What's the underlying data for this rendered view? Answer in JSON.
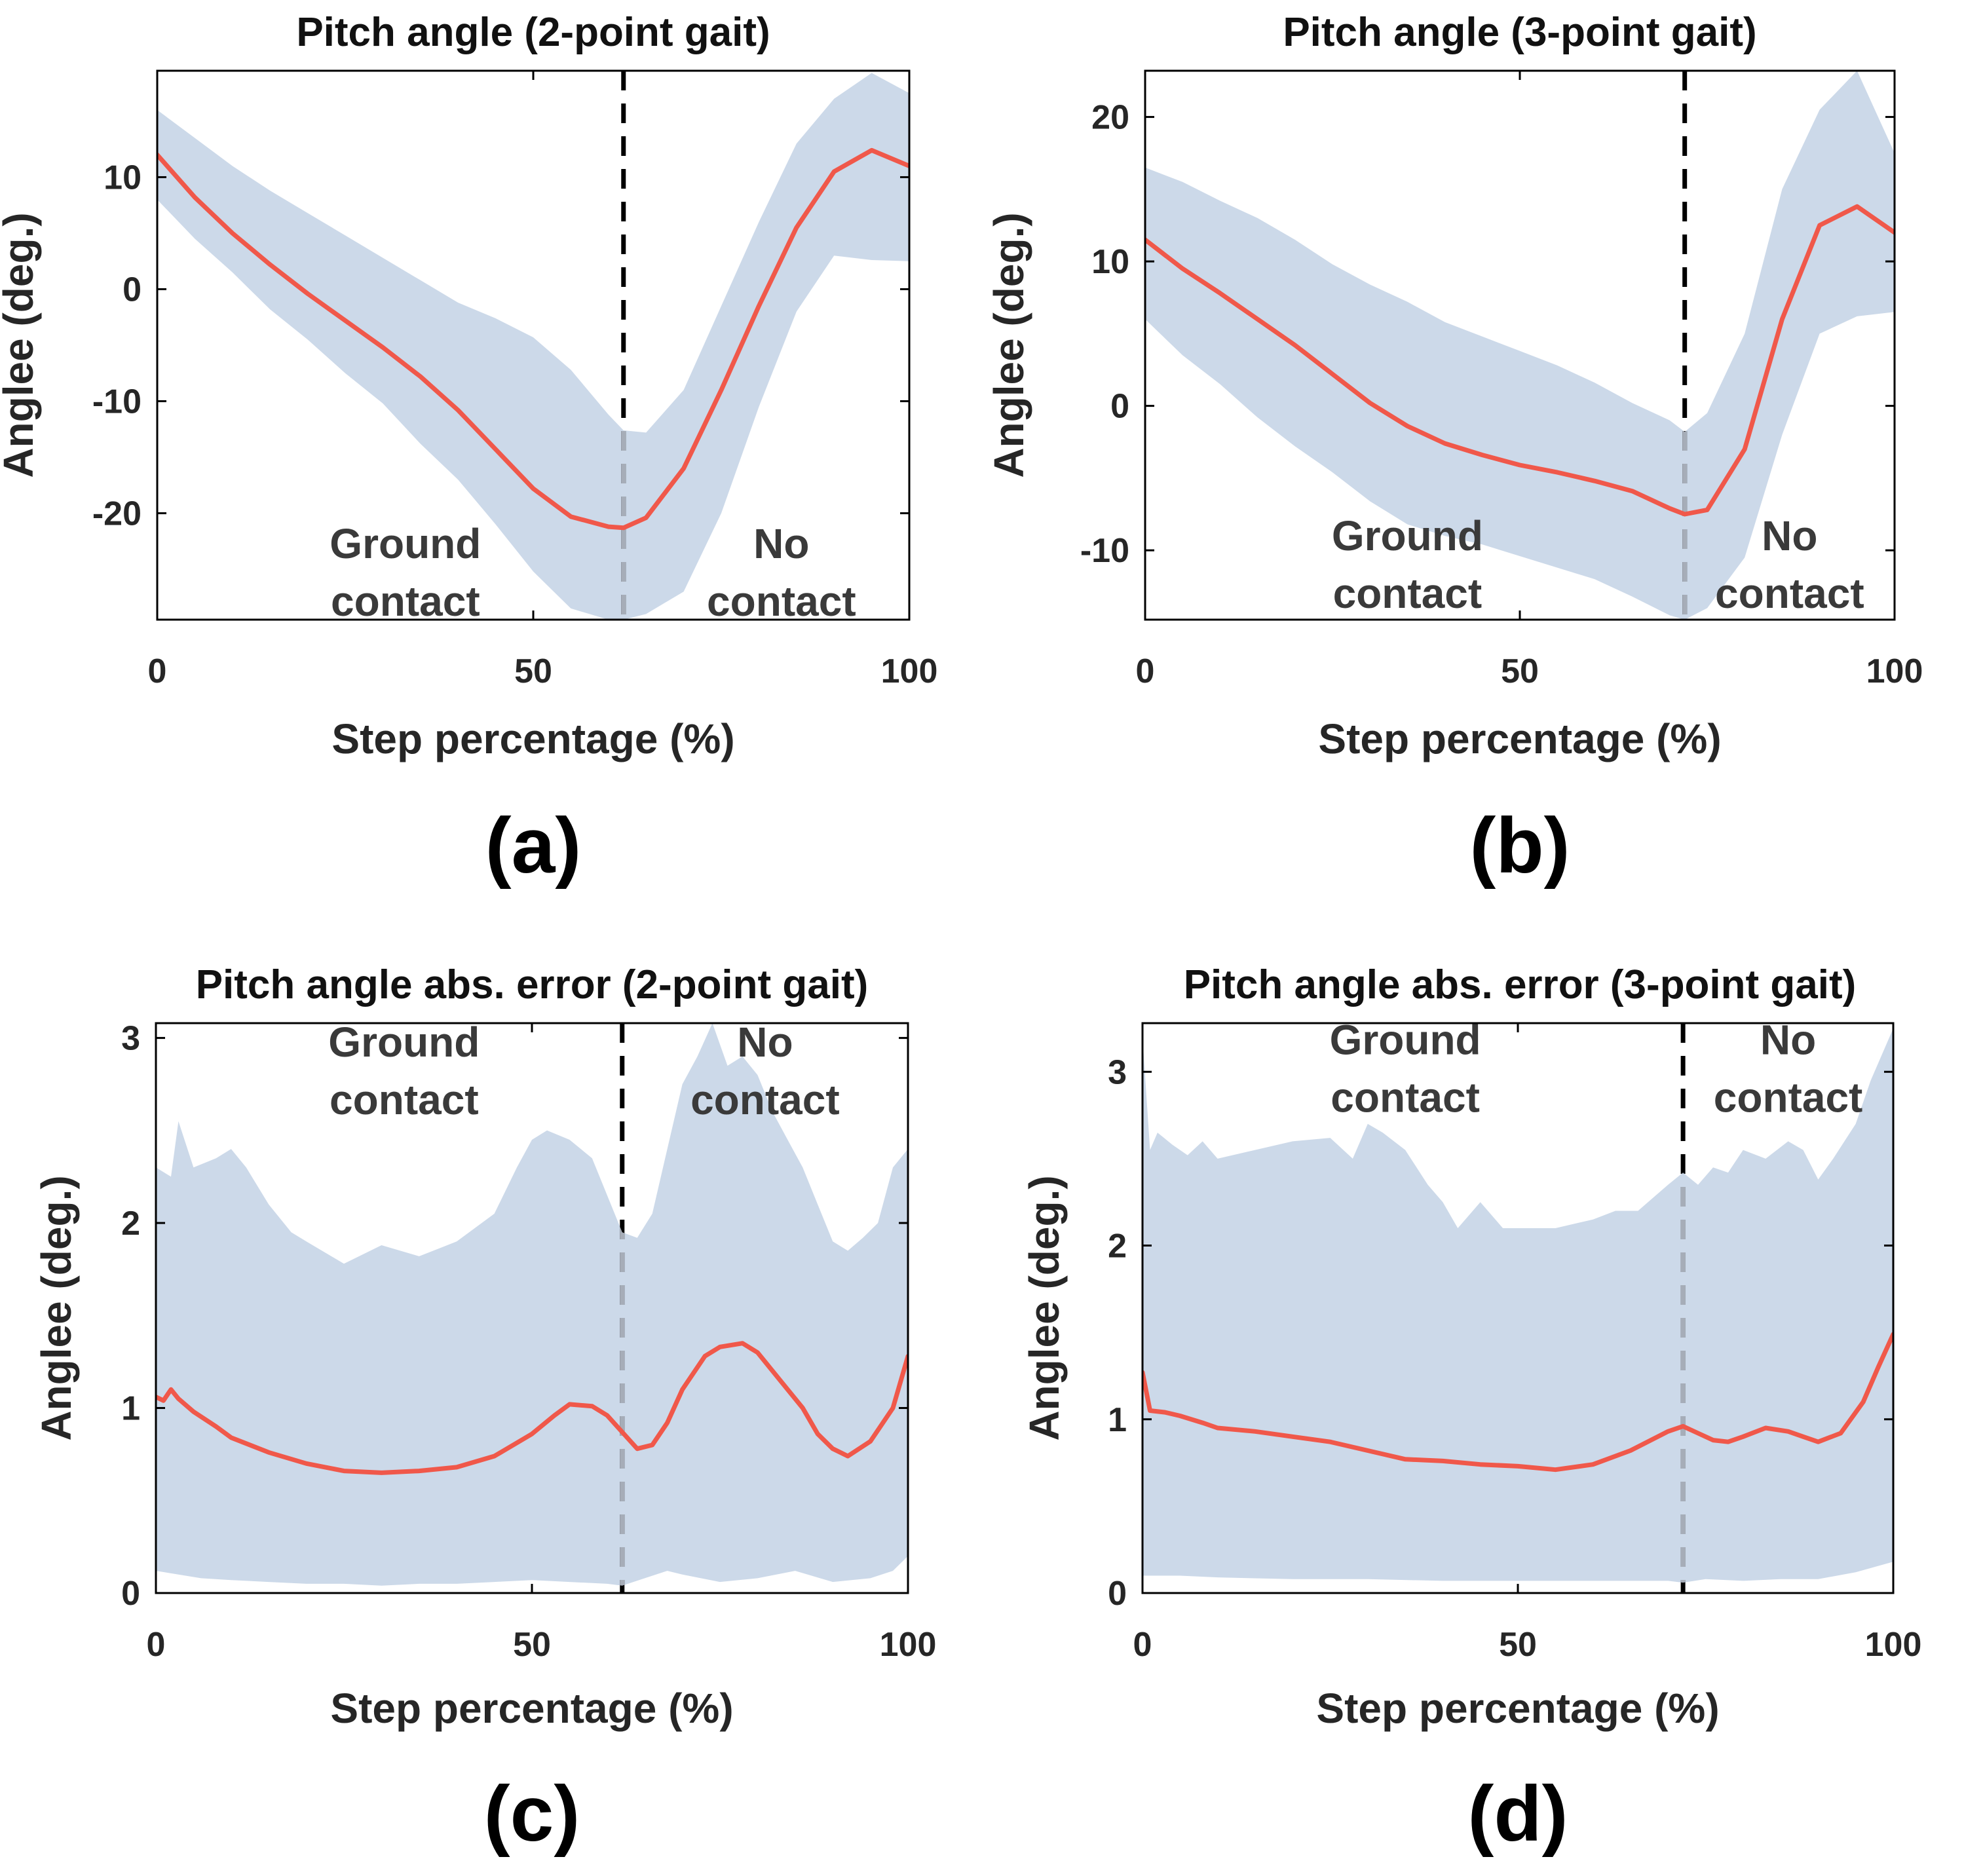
{
  "chart_data": [
    {
      "type": "area",
      "panel_label": "(a)",
      "title": "Pitch angle (2-point gait)",
      "xlabel": "Step percentage (%)",
      "ylabel": "Anglee (deg.)",
      "xlim": [
        0,
        100
      ],
      "ylim": [
        -29.5,
        19.5
      ],
      "xticks": [
        0,
        50,
        100
      ],
      "yticks": [
        -20,
        -10,
        0,
        10
      ],
      "grid": false,
      "divider_x": 62,
      "annotations": [
        {
          "lines": [
            "Ground",
            "contact"
          ],
          "x": 33,
          "y": -24
        },
        {
          "lines": [
            "No",
            "contact"
          ],
          "x": 83,
          "y": -24
        }
      ],
      "series": [
        {
          "kind": "mean",
          "color": "#f0584a",
          "x": [
            0,
            5,
            10,
            15,
            20,
            25,
            30,
            35,
            40,
            45,
            50,
            55,
            60,
            62,
            65,
            70,
            75,
            80,
            85,
            90,
            95,
            100
          ],
          "values": [
            12,
            8.2,
            5,
            2.2,
            -0.4,
            -2.8,
            -5.2,
            -7.8,
            -10.8,
            -14.3,
            -17.8,
            -20.3,
            -21.2,
            -21.3,
            -20.4,
            -16,
            -9,
            -1.5,
            5.5,
            10.5,
            12.4,
            11
          ]
        },
        {
          "kind": "band-upper",
          "color": "#ccd9e9",
          "x": [
            0,
            5,
            10,
            15,
            20,
            25,
            30,
            35,
            40,
            45,
            50,
            55,
            60,
            62,
            65,
            70,
            75,
            80,
            85,
            90,
            95,
            100
          ],
          "values": [
            16,
            13.5,
            11,
            8.8,
            6.8,
            4.8,
            2.8,
            0.8,
            -1.2,
            -2.6,
            -4.3,
            -7.2,
            -11.2,
            -12.6,
            -12.8,
            -9,
            -1.5,
            6,
            13,
            17,
            19.3,
            17.5
          ]
        },
        {
          "kind": "band-lower",
          "color": "#ccd9e9",
          "x": [
            0,
            5,
            10,
            15,
            20,
            25,
            30,
            35,
            40,
            45,
            50,
            55,
            60,
            62,
            65,
            70,
            75,
            80,
            85,
            90,
            95,
            100
          ],
          "values": [
            8,
            4.5,
            1.5,
            -1.8,
            -4.5,
            -7.5,
            -10.2,
            -13.8,
            -17,
            -21,
            -25.2,
            -28.5,
            -29.5,
            -29.5,
            -29,
            -27,
            -20,
            -10.5,
            -2,
            3,
            2.6,
            2.5
          ]
        }
      ]
    },
    {
      "type": "area",
      "panel_label": "(b)",
      "title": "Pitch angle (3-point gait)",
      "xlabel": "Step percentage (%)",
      "ylabel": "Anglee (deg.)",
      "xlim": [
        0,
        100
      ],
      "ylim": [
        -14.8,
        23.2
      ],
      "xticks": [
        0,
        50,
        100
      ],
      "yticks": [
        -10,
        0,
        10,
        20
      ],
      "grid": false,
      "divider_x": 72,
      "annotations": [
        {
          "lines": [
            "Ground",
            "contact"
          ],
          "x": 35,
          "y": -10
        },
        {
          "lines": [
            "No",
            "contact"
          ],
          "x": 86,
          "y": -10
        }
      ],
      "series": [
        {
          "kind": "mean",
          "color": "#f0584a",
          "x": [
            0,
            5,
            10,
            15,
            20,
            25,
            30,
            35,
            40,
            45,
            50,
            55,
            60,
            65,
            70,
            72,
            75,
            80,
            85,
            90,
            95,
            100
          ],
          "values": [
            11.5,
            9.5,
            7.8,
            6,
            4.2,
            2.2,
            0.2,
            -1.4,
            -2.6,
            -3.4,
            -4.1,
            -4.6,
            -5.2,
            -5.9,
            -7.1,
            -7.5,
            -7.2,
            -3,
            6,
            12.5,
            13.8,
            12
          ]
        },
        {
          "kind": "band-upper",
          "color": "#ccd9e9",
          "x": [
            0,
            5,
            10,
            15,
            20,
            25,
            30,
            35,
            40,
            45,
            50,
            55,
            60,
            65,
            70,
            72,
            75,
            80,
            85,
            90,
            95,
            100
          ],
          "values": [
            16.5,
            15.5,
            14.2,
            13,
            11.5,
            9.8,
            8.4,
            7.2,
            5.8,
            4.8,
            3.8,
            2.8,
            1.6,
            0.2,
            -1,
            -1.8,
            -0.5,
            5,
            15,
            20.5,
            23.2,
            17.5
          ]
        },
        {
          "kind": "band-lower",
          "color": "#ccd9e9",
          "x": [
            0,
            5,
            10,
            15,
            20,
            25,
            30,
            35,
            40,
            45,
            50,
            55,
            60,
            65,
            70,
            72,
            75,
            80,
            85,
            90,
            95,
            100
          ],
          "values": [
            6,
            3.5,
            1.5,
            -0.8,
            -2.8,
            -4.6,
            -6.6,
            -8.2,
            -9,
            -9.6,
            -10.4,
            -11.2,
            -12,
            -13.2,
            -14.5,
            -14.8,
            -14,
            -10.5,
            -2,
            5,
            6.2,
            6.5
          ]
        }
      ]
    },
    {
      "type": "area",
      "panel_label": "(c)",
      "title": "Pitch angle abs. error (2-point gait)",
      "xlabel": "Step percentage (%)",
      "ylabel": "Anglee (deg.)",
      "xlim": [
        0,
        100
      ],
      "ylim": [
        0,
        3.08
      ],
      "xticks": [
        0,
        50,
        100
      ],
      "yticks": [
        0,
        1,
        2,
        3
      ],
      "grid": false,
      "divider_x": 62,
      "annotations": [
        {
          "lines": [
            "Ground",
            "contact"
          ],
          "x": 33,
          "y": 2.9
        },
        {
          "lines": [
            "No",
            "contact"
          ],
          "x": 81,
          "y": 2.9
        }
      ],
      "series": [
        {
          "kind": "mean",
          "color": "#f0584a",
          "x": [
            0,
            1,
            2,
            3,
            5,
            8,
            10,
            15,
            20,
            25,
            30,
            35,
            40,
            45,
            50,
            53,
            55,
            58,
            60,
            62,
            64,
            66,
            68,
            70,
            73,
            75,
            78,
            80,
            83,
            86,
            88,
            90,
            92,
            95,
            98,
            100
          ],
          "values": [
            1.06,
            1.04,
            1.1,
            1.05,
            0.98,
            0.9,
            0.84,
            0.76,
            0.7,
            0.66,
            0.65,
            0.66,
            0.68,
            0.74,
            0.86,
            0.96,
            1.02,
            1.01,
            0.96,
            0.87,
            0.78,
            0.8,
            0.92,
            1.1,
            1.28,
            1.33,
            1.35,
            1.3,
            1.15,
            1.0,
            0.86,
            0.78,
            0.74,
            0.82,
            1.0,
            1.28
          ]
        },
        {
          "kind": "band-upper",
          "color": "#ccd9e9",
          "x": [
            0,
            2,
            3,
            5,
            8,
            10,
            12,
            15,
            18,
            20,
            25,
            30,
            35,
            40,
            45,
            48,
            50,
            52,
            55,
            58,
            60,
            62,
            64,
            66,
            68,
            70,
            72,
            74,
            76,
            78,
            80,
            82,
            84,
            86,
            88,
            90,
            92,
            94,
            96,
            98,
            100
          ],
          "values": [
            2.3,
            2.25,
            2.55,
            2.3,
            2.35,
            2.4,
            2.3,
            2.1,
            1.95,
            1.9,
            1.78,
            1.88,
            1.82,
            1.9,
            2.05,
            2.3,
            2.45,
            2.5,
            2.45,
            2.35,
            2.15,
            1.95,
            1.92,
            2.05,
            2.4,
            2.75,
            2.9,
            3.08,
            2.85,
            2.9,
            2.8,
            2.6,
            2.45,
            2.3,
            2.1,
            1.9,
            1.85,
            1.92,
            2.0,
            2.3,
            2.4
          ]
        },
        {
          "kind": "band-lower",
          "color": "#ccd9e9",
          "x": [
            0,
            3,
            6,
            10,
            15,
            20,
            25,
            30,
            35,
            40,
            45,
            50,
            55,
            60,
            62,
            65,
            68,
            70,
            75,
            80,
            85,
            90,
            95,
            98,
            100
          ],
          "values": [
            0.12,
            0.1,
            0.08,
            0.07,
            0.06,
            0.05,
            0.05,
            0.04,
            0.05,
            0.05,
            0.06,
            0.07,
            0.06,
            0.05,
            0.04,
            0.08,
            0.12,
            0.1,
            0.06,
            0.08,
            0.12,
            0.06,
            0.08,
            0.12,
            0.2
          ]
        }
      ]
    },
    {
      "type": "area",
      "panel_label": "(d)",
      "title": "Pitch angle abs. error (3-point gait)",
      "xlabel": "Step percentage (%)",
      "ylabel": "Anglee (deg.)",
      "xlim": [
        0,
        100
      ],
      "ylim": [
        0,
        3.28
      ],
      "xticks": [
        0,
        50,
        100
      ],
      "yticks": [
        0,
        1,
        2,
        3
      ],
      "grid": false,
      "divider_x": 72,
      "annotations": [
        {
          "lines": [
            "Ground",
            "contact"
          ],
          "x": 35,
          "y": 3.1
        },
        {
          "lines": [
            "No",
            "contact"
          ],
          "x": 86,
          "y": 3.1
        }
      ],
      "series": [
        {
          "kind": "mean",
          "color": "#f0584a",
          "x": [
            0,
            1,
            3,
            5,
            8,
            10,
            15,
            20,
            25,
            30,
            35,
            40,
            45,
            50,
            55,
            60,
            65,
            70,
            72,
            74,
            76,
            78,
            80,
            83,
            86,
            88,
            90,
            93,
            96,
            98,
            100
          ],
          "values": [
            1.27,
            1.05,
            1.04,
            1.02,
            0.98,
            0.95,
            0.93,
            0.9,
            0.87,
            0.82,
            0.77,
            0.76,
            0.74,
            0.73,
            0.71,
            0.74,
            0.82,
            0.93,
            0.96,
            0.92,
            0.88,
            0.87,
            0.9,
            0.95,
            0.93,
            0.9,
            0.87,
            0.92,
            1.1,
            1.3,
            1.49
          ]
        },
        {
          "kind": "band-upper",
          "color": "#ccd9e9",
          "x": [
            0,
            1,
            2,
            4,
            6,
            8,
            10,
            15,
            20,
            25,
            28,
            30,
            32,
            35,
            38,
            40,
            42,
            45,
            48,
            50,
            55,
            60,
            63,
            66,
            70,
            72,
            74,
            76,
            78,
            80,
            83,
            86,
            88,
            90,
            92,
            95,
            97,
            100
          ],
          "values": [
            3.2,
            2.55,
            2.65,
            2.58,
            2.52,
            2.6,
            2.5,
            2.55,
            2.6,
            2.62,
            2.5,
            2.7,
            2.65,
            2.55,
            2.35,
            2.25,
            2.1,
            2.25,
            2.1,
            2.1,
            2.1,
            2.15,
            2.2,
            2.2,
            2.35,
            2.42,
            2.35,
            2.45,
            2.42,
            2.55,
            2.5,
            2.6,
            2.55,
            2.38,
            2.5,
            2.7,
            2.95,
            3.25
          ]
        },
        {
          "kind": "band-lower",
          "color": "#ccd9e9",
          "x": [
            0,
            5,
            10,
            20,
            30,
            40,
            50,
            60,
            70,
            72,
            75,
            80,
            85,
            90,
            95,
            100
          ],
          "values": [
            0.1,
            0.1,
            0.09,
            0.08,
            0.08,
            0.07,
            0.07,
            0.07,
            0.07,
            0.06,
            0.08,
            0.07,
            0.08,
            0.08,
            0.12,
            0.18
          ]
        }
      ]
    }
  ]
}
